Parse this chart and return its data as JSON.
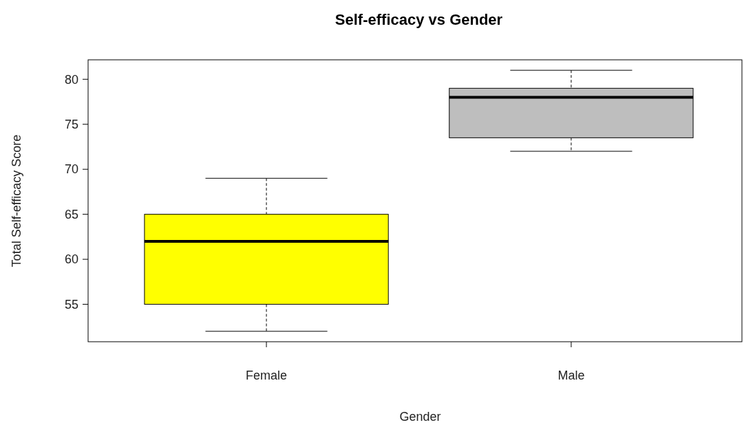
{
  "chart_data": {
    "type": "box",
    "title": "Self-efficacy vs Gender",
    "xlabel": "Gender",
    "ylabel": "Total Self-efficacy Score",
    "categories": [
      "Female",
      "Male"
    ],
    "boxes": [
      {
        "low": 52,
        "q1": 55,
        "median": 62,
        "q3": 65,
        "high": 69
      },
      {
        "low": 72,
        "q1": 73.5,
        "median": 78,
        "q3": 79,
        "high": 81
      }
    ],
    "colors": [
      "#ffff00",
      "#bebebe"
    ],
    "ylim": [
      50.84,
      82.16
    ],
    "yticks": [
      55,
      60,
      65,
      70,
      75,
      80
    ],
    "grid": false
  }
}
